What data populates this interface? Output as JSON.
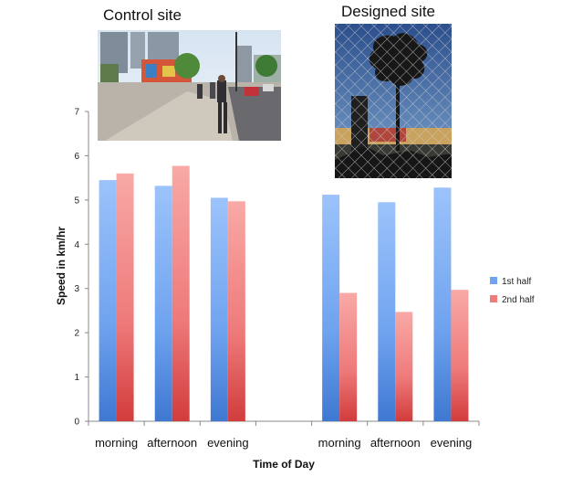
{
  "photos": {
    "control_title": "Control site",
    "designed_title": "Designed site"
  },
  "chart_data": {
    "type": "bar",
    "title": "",
    "xlabel": "Time of Day",
    "ylabel": "Speed in km/hr",
    "ylim": [
      0,
      7
    ],
    "yticks": [
      0,
      1,
      2,
      3,
      4,
      5,
      6,
      7
    ],
    "grid": false,
    "legend_position": "right",
    "categories": [
      "morning",
      "afternoon",
      "evening",
      "",
      "morning",
      "afternoon",
      "evening"
    ],
    "series": [
      {
        "name": "1st half",
        "color": "#6fa3ef",
        "values": [
          5.45,
          5.32,
          5.05,
          null,
          5.12,
          4.95,
          5.28
        ]
      },
      {
        "name": "2nd half",
        "color": "#f07b7b",
        "values": [
          5.6,
          5.77,
          4.97,
          null,
          2.9,
          2.47,
          2.97
        ]
      }
    ]
  }
}
